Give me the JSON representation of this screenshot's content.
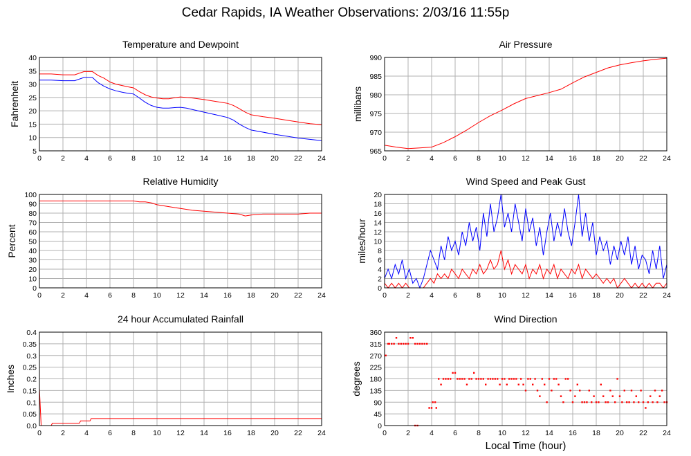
{
  "header": {
    "title": "Cedar Rapids, IA Weather Observations: 2/03/16 11:55p"
  },
  "footer": {
    "xlabel": "Local Time (hour)"
  },
  "colors": {
    "red": "#ff0000",
    "blue": "#0000ff",
    "grid": "#b0b0b0",
    "frame": "#000000"
  },
  "chart_data": [
    {
      "id": "temp",
      "type": "line",
      "title": "Temperature and Dewpoint",
      "xlabel": "",
      "ylabel": "Fahrenheit",
      "xlim": [
        0,
        24
      ],
      "ylim": [
        5,
        40
      ],
      "xticks": [
        0,
        2,
        4,
        6,
        8,
        10,
        12,
        14,
        16,
        18,
        20,
        22,
        24
      ],
      "yticks": [
        5,
        10,
        15,
        20,
        25,
        30,
        35,
        40
      ],
      "grid": true,
      "series": [
        {
          "color": "#ff0000",
          "x": [
            0,
            1,
            2,
            3,
            3.8,
            4.5,
            5.0,
            5.5,
            6,
            6.5,
            7,
            7.5,
            8,
            8.5,
            9,
            9.5,
            10,
            10.5,
            11,
            11.5,
            12,
            12.5,
            13,
            14,
            15,
            16,
            16.5,
            17,
            17.5,
            18,
            19,
            20,
            21,
            22,
            23,
            24
          ],
          "y": [
            33.8,
            33.8,
            33.5,
            33.5,
            34.7,
            34.7,
            33.2,
            32.2,
            30.8,
            30.0,
            29.5,
            29.0,
            28.6,
            27.2,
            26.0,
            25.2,
            24.8,
            24.5,
            24.5,
            24.9,
            25.2,
            25.0,
            24.8,
            24.2,
            23.5,
            22.8,
            22.0,
            20.8,
            19.5,
            18.5,
            17.8,
            17.2,
            16.5,
            15.8,
            15.2,
            14.8
          ]
        },
        {
          "color": "#0000ff",
          "x": [
            0,
            1,
            2,
            3,
            3.8,
            4.5,
            5.0,
            5.5,
            6,
            6.5,
            7,
            7.5,
            8,
            8.5,
            9,
            9.5,
            10,
            10.5,
            11,
            11.5,
            12,
            12.5,
            13,
            14,
            15,
            16,
            16.5,
            17,
            17.5,
            18,
            19,
            20,
            21,
            22,
            23,
            24
          ],
          "y": [
            31.5,
            31.5,
            31.3,
            31.3,
            32.5,
            32.5,
            30.5,
            29.2,
            28.2,
            27.5,
            27.0,
            26.6,
            26.3,
            24.8,
            23.2,
            22.0,
            21.3,
            21.0,
            21.0,
            21.2,
            21.3,
            21.0,
            20.5,
            19.5,
            18.5,
            17.5,
            16.5,
            15.0,
            13.8,
            12.8,
            12.0,
            11.2,
            10.5,
            9.8,
            9.3,
            8.8
          ]
        }
      ]
    },
    {
      "id": "pressure",
      "type": "line",
      "title": "Air Pressure",
      "xlabel": "",
      "ylabel": "millibars",
      "xlim": [
        0,
        24
      ],
      "ylim": [
        965,
        990
      ],
      "xticks": [
        0,
        2,
        4,
        6,
        8,
        10,
        12,
        14,
        16,
        18,
        20,
        22,
        24
      ],
      "yticks": [
        965,
        970,
        975,
        980,
        985,
        990
      ],
      "grid": true,
      "series": [
        {
          "color": "#ff0000",
          "x": [
            0,
            1,
            2,
            3,
            4,
            5,
            6,
            7,
            8,
            9,
            10,
            11,
            12,
            13,
            14,
            15,
            16,
            17,
            18,
            19,
            20,
            21,
            22,
            23,
            24
          ],
          "y": [
            966.5,
            966.0,
            965.6,
            965.8,
            966.0,
            967.2,
            968.8,
            970.6,
            972.6,
            974.4,
            975.9,
            977.6,
            979.0,
            979.8,
            980.6,
            981.5,
            983.2,
            984.8,
            986.0,
            987.2,
            988.0,
            988.6,
            989.1,
            989.5,
            989.8
          ]
        }
      ]
    },
    {
      "id": "humidity",
      "type": "line",
      "title": "Relative Humidity",
      "xlabel": "",
      "ylabel": "Percent",
      "xlim": [
        0,
        24
      ],
      "ylim": [
        0,
        100
      ],
      "xticks": [
        0,
        2,
        4,
        6,
        8,
        10,
        12,
        14,
        16,
        18,
        20,
        22,
        24
      ],
      "yticks": [
        0,
        10,
        20,
        30,
        40,
        50,
        60,
        70,
        80,
        90,
        100
      ],
      "grid": true,
      "series": [
        {
          "color": "#ff0000",
          "x": [
            0,
            2,
            4,
            6,
            7,
            8,
            8.5,
            9,
            9.5,
            10,
            11,
            12,
            13,
            14,
            15,
            16,
            17,
            17.5,
            18,
            19,
            20,
            21,
            22,
            23,
            24
          ],
          "y": [
            93,
            93,
            93,
            93,
            93,
            93,
            92,
            92,
            91,
            89,
            87,
            85,
            83,
            82,
            81,
            80,
            79,
            77,
            78,
            79,
            79,
            79,
            79,
            80,
            80
          ]
        }
      ]
    },
    {
      "id": "wind",
      "type": "line",
      "title": "Wind Speed and Peak Gust",
      "xlabel": "",
      "ylabel": "miles/hour",
      "xlim": [
        0,
        24
      ],
      "ylim": [
        0,
        20
      ],
      "xticks": [
        0,
        2,
        4,
        6,
        8,
        10,
        12,
        14,
        16,
        18,
        20,
        22,
        24
      ],
      "yticks": [
        0,
        2,
        4,
        6,
        8,
        10,
        12,
        14,
        16,
        18,
        20
      ],
      "grid": true,
      "series": [
        {
          "color": "#0000ff",
          "x": [
            0,
            0.3,
            0.6,
            0.9,
            1.2,
            1.5,
            1.8,
            2.1,
            2.4,
            2.7,
            3.0,
            3.3,
            3.6,
            3.9,
            4.2,
            4.5,
            4.8,
            5.1,
            5.4,
            5.7,
            6.0,
            6.3,
            6.6,
            6.9,
            7.2,
            7.5,
            7.8,
            8.1,
            8.4,
            8.7,
            9.0,
            9.3,
            9.6,
            9.9,
            10.2,
            10.5,
            10.8,
            11.1,
            11.4,
            11.7,
            12.0,
            12.3,
            12.6,
            12.9,
            13.2,
            13.5,
            13.8,
            14.1,
            14.4,
            14.7,
            15.0,
            15.3,
            15.6,
            15.9,
            16.2,
            16.5,
            16.8,
            17.1,
            17.4,
            17.7,
            18.0,
            18.3,
            18.6,
            18.9,
            19.2,
            19.5,
            19.8,
            20.1,
            20.4,
            20.7,
            21.0,
            21.3,
            21.6,
            21.9,
            22.2,
            22.5,
            22.8,
            23.1,
            23.4,
            23.7,
            24.0
          ],
          "y": [
            2,
            4,
            2,
            5,
            3,
            6,
            2,
            4,
            1,
            2,
            0,
            2,
            5,
            8,
            6,
            4,
            9,
            6,
            11,
            8,
            10,
            7,
            12,
            9,
            14,
            10,
            13,
            8,
            16,
            11,
            18,
            12,
            15,
            20,
            13,
            16,
            12,
            18,
            14,
            10,
            17,
            12,
            15,
            9,
            13,
            7,
            12,
            16,
            10,
            14,
            11,
            17,
            12,
            9,
            14,
            20,
            11,
            16,
            10,
            14,
            7,
            11,
            8,
            10,
            5,
            9,
            6,
            10,
            7,
            11,
            5,
            9,
            4,
            7,
            6,
            3,
            8,
            4,
            9,
            2,
            5
          ]
        },
        {
          "color": "#ff0000",
          "x": [
            0,
            0.3,
            0.6,
            0.9,
            1.2,
            1.5,
            1.8,
            2.1,
            2.4,
            2.7,
            3.0,
            3.3,
            3.6,
            3.9,
            4.2,
            4.5,
            4.8,
            5.1,
            5.4,
            5.7,
            6.0,
            6.3,
            6.6,
            6.9,
            7.2,
            7.5,
            7.8,
            8.1,
            8.4,
            8.7,
            9.0,
            9.3,
            9.6,
            9.9,
            10.2,
            10.5,
            10.8,
            11.1,
            11.4,
            11.7,
            12.0,
            12.3,
            12.6,
            12.9,
            13.2,
            13.5,
            13.8,
            14.1,
            14.4,
            14.7,
            15.0,
            15.3,
            15.6,
            15.9,
            16.2,
            16.5,
            16.8,
            17.1,
            17.4,
            17.7,
            18.0,
            18.3,
            18.6,
            18.9,
            19.2,
            19.5,
            19.8,
            20.1,
            20.4,
            20.7,
            21.0,
            21.3,
            21.6,
            21.9,
            22.2,
            22.5,
            22.8,
            23.1,
            23.4,
            23.7,
            24.0
          ],
          "y": [
            1,
            0,
            1,
            0,
            1,
            0,
            1,
            0,
            0,
            0,
            0,
            0,
            1,
            2,
            1,
            3,
            2,
            3,
            2,
            4,
            3,
            2,
            4,
            3,
            2,
            4,
            3,
            5,
            3,
            4,
            6,
            4,
            5,
            8,
            4,
            6,
            3,
            5,
            4,
            3,
            5,
            2,
            4,
            3,
            5,
            2,
            4,
            3,
            5,
            2,
            4,
            3,
            2,
            4,
            3,
            5,
            2,
            4,
            3,
            2,
            3,
            2,
            1,
            2,
            1,
            2,
            0,
            1,
            2,
            1,
            0,
            1,
            0,
            1,
            0,
            1,
            0,
            1,
            1,
            0,
            1
          ]
        }
      ]
    },
    {
      "id": "rain",
      "type": "line",
      "title": "24 hour Accumulated Rainfall",
      "xlabel": "",
      "ylabel": "Inches",
      "xlim": [
        0,
        24
      ],
      "ylim": [
        0,
        0.4
      ],
      "xticks": [
        0,
        2,
        4,
        6,
        8,
        10,
        12,
        14,
        16,
        18,
        20,
        22,
        24
      ],
      "yticks": [
        0,
        0.05,
        0.1,
        0.15,
        0.2,
        0.25,
        0.3,
        0.35,
        0.4
      ],
      "ytick_labels": [
        "0.0",
        "0.05",
        "0.1",
        "0.15",
        "0.2",
        "0.25",
        "0.3",
        "0.35",
        "0.4"
      ],
      "grid": true,
      "series": [
        {
          "color": "#ff0000",
          "x": [
            0,
            0.15,
            0.2,
            1.0,
            1.1,
            3.4,
            3.5,
            4.3,
            4.4,
            24
          ],
          "y": [
            0.16,
            0.0,
            0.0,
            0.0,
            0.01,
            0.01,
            0.02,
            0.02,
            0.03,
            0.03
          ]
        }
      ]
    },
    {
      "id": "direction",
      "type": "scatter",
      "title": "Wind Direction",
      "xlabel": "Local Time (hour)",
      "ylabel": "degrees",
      "xlim": [
        0,
        24
      ],
      "ylim": [
        0,
        360
      ],
      "xticks": [
        0,
        2,
        4,
        6,
        8,
        10,
        12,
        14,
        16,
        18,
        20,
        22,
        24
      ],
      "yticks": [
        0,
        45,
        90,
        135,
        180,
        225,
        270,
        315,
        360
      ],
      "grid": true,
      "series": [
        {
          "color": "#ff0000",
          "x": [
            0.1,
            0.3,
            0.4,
            0.6,
            0.8,
            1.0,
            1.2,
            1.4,
            1.6,
            1.8,
            2.0,
            2.2,
            2.4,
            2.6,
            2.8,
            3.0,
            3.2,
            2.6,
            2.8,
            3.4,
            3.6,
            3.8,
            4.0,
            4.1,
            4.3,
            4.4,
            4.6,
            4.8,
            5.0,
            5.2,
            5.4,
            5.6,
            5.8,
            6.0,
            6.2,
            6.4,
            6.6,
            6.8,
            7.0,
            7.2,
            7.4,
            7.6,
            7.8,
            8.0,
            8.2,
            8.4,
            8.6,
            8.8,
            9.0,
            9.2,
            9.4,
            9.6,
            9.8,
            10.0,
            10.2,
            10.4,
            10.6,
            10.8,
            11.0,
            11.2,
            11.4,
            11.6,
            11.8,
            12.0,
            12.2,
            12.4,
            12.6,
            12.8,
            13.0,
            13.2,
            13.4,
            13.6,
            13.8,
            14.0,
            14.2,
            14.4,
            14.6,
            14.8,
            15.0,
            15.2,
            15.4,
            15.6,
            15.8,
            16.0,
            16.2,
            16.4,
            16.6,
            16.8,
            17.0,
            17.2,
            17.4,
            17.6,
            17.8,
            18.0,
            18.2,
            18.4,
            18.6,
            18.8,
            19.0,
            19.2,
            19.4,
            19.6,
            19.8,
            20.0,
            20.2,
            20.4,
            20.6,
            20.8,
            21.0,
            21.2,
            21.4,
            21.6,
            21.8,
            22.0,
            22.2,
            22.4,
            22.6,
            22.8,
            23.0,
            23.2,
            23.4,
            23.6,
            23.8,
            24.0
          ],
          "y": [
            270,
            315,
            315,
            315,
            315,
            338,
            315,
            315,
            315,
            315,
            315,
            338,
            338,
            315,
            315,
            315,
            315,
            0,
            0,
            315,
            315,
            68,
            68,
            90,
            90,
            68,
            180,
            158,
            180,
            180,
            180,
            180,
            203,
            203,
            180,
            180,
            180,
            180,
            158,
            180,
            180,
            203,
            180,
            180,
            180,
            180,
            158,
            180,
            180,
            180,
            180,
            180,
            158,
            180,
            180,
            158,
            180,
            180,
            180,
            180,
            158,
            180,
            158,
            135,
            180,
            180,
            158,
            180,
            135,
            113,
            180,
            158,
            90,
            180,
            135,
            180,
            180,
            158,
            113,
            90,
            180,
            180,
            135,
            90,
            113,
            158,
            135,
            90,
            90,
            90,
            135,
            90,
            113,
            90,
            90,
            158,
            113,
            90,
            90,
            135,
            113,
            90,
            180,
            113,
            90,
            135,
            90,
            90,
            135,
            90,
            113,
            90,
            135,
            90,
            68,
            90,
            113,
            90,
            135,
            90,
            113,
            135,
            90,
            90
          ]
        }
      ]
    }
  ]
}
